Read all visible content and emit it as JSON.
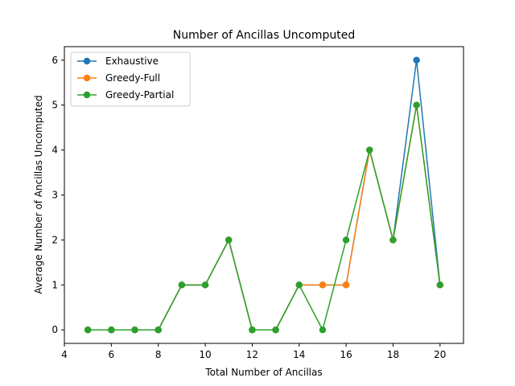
{
  "chart_data": {
    "type": "line",
    "title": "Number of Ancillas Uncomputed",
    "xlabel": "Total Number of Ancillas",
    "ylabel": "Average Number of Ancillas Uncomputed",
    "xlim": [
      4,
      21
    ],
    "ylim": [
      -0.3,
      6.3
    ],
    "xticks": [
      4,
      6,
      8,
      10,
      12,
      14,
      16,
      18,
      20
    ],
    "yticks": [
      0,
      1,
      2,
      3,
      4,
      5,
      6
    ],
    "grid": false,
    "legend_position": "top-left",
    "x": [
      5,
      6,
      7,
      8,
      9,
      10,
      11,
      12,
      13,
      14,
      15,
      16,
      17,
      18,
      19,
      20
    ],
    "series": [
      {
        "name": "Exhaustive",
        "color": "#1f77b4",
        "values": [
          0,
          0,
          0,
          0,
          1,
          1,
          2,
          0,
          0,
          1,
          1,
          1,
          4,
          2,
          6,
          1
        ]
      },
      {
        "name": "Greedy-Full",
        "color": "#ff7f0e",
        "values": [
          0,
          0,
          0,
          0,
          1,
          1,
          2,
          0,
          0,
          1,
          1,
          1,
          4,
          2,
          5,
          1
        ]
      },
      {
        "name": "Greedy-Partial",
        "color": "#2ca02c",
        "values": [
          0,
          0,
          0,
          0,
          1,
          1,
          2,
          0,
          0,
          1,
          0,
          2,
          4,
          2,
          5,
          1
        ]
      }
    ]
  }
}
